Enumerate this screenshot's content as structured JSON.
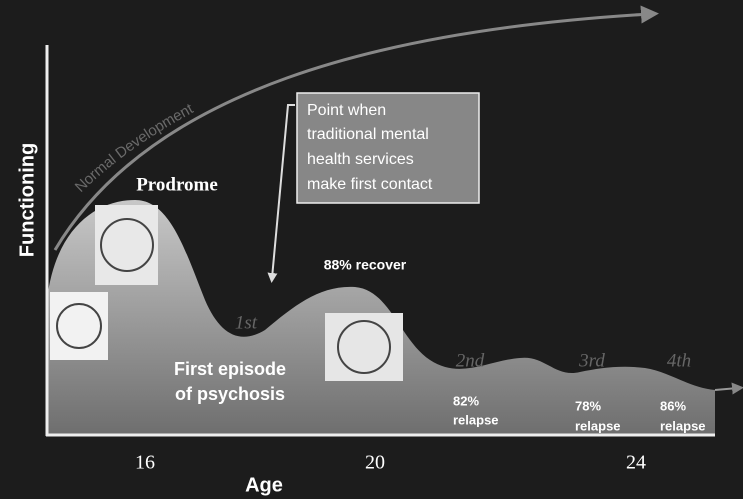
{
  "axes": {
    "y_label": "Functioning",
    "x_label": "Age",
    "x_ticks": [
      "16",
      "20",
      "24"
    ]
  },
  "curve_label": "Normal Development",
  "stages": {
    "prodrome": "Prodrome",
    "first_episode": [
      "First episode",
      "of psychosis"
    ]
  },
  "callout": [
    "Point when",
    "traditional mental",
    "health services",
    "make first contact"
  ],
  "episodes": [
    "1st",
    "2nd",
    "3rd",
    "4th"
  ],
  "outcomes": {
    "recover": "88% recover",
    "relapses": [
      [
        "82%",
        "relapse"
      ],
      [
        "78%",
        "relapse"
      ],
      [
        "86%",
        "relapse"
      ]
    ]
  }
}
